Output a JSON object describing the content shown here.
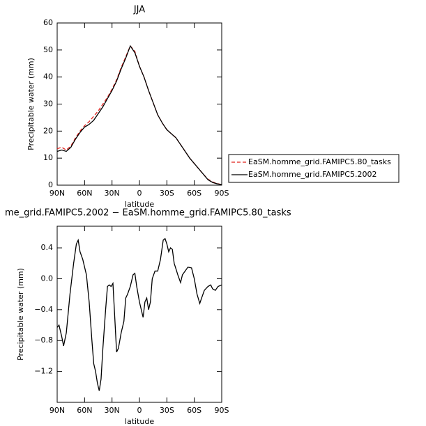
{
  "chart_data": [
    {
      "type": "line",
      "title": "JJA",
      "xlabel": "latitude",
      "ylabel": "Precipitable water (mm)",
      "x": [
        90,
        85,
        80,
        75,
        70,
        65,
        60,
        55,
        50,
        45,
        40,
        35,
        30,
        25,
        20,
        15,
        10,
        5,
        0,
        -5,
        -10,
        -15,
        -20,
        -25,
        -30,
        -35,
        -40,
        -45,
        -50,
        -55,
        -60,
        -65,
        -70,
        -75,
        -80,
        -85,
        -90
      ],
      "series": [
        {
          "name": "EaSM.homme_grid.FAMIPC5.80_tasks",
          "color": "#e0201b",
          "linestyle": "dashed",
          "values": [
            13.5,
            14,
            13,
            14.5,
            17.5,
            20,
            22,
            23.5,
            25.5,
            27.5,
            30,
            32.5,
            35.5,
            39,
            43.5,
            47.5,
            51.5,
            49.5,
            44,
            40,
            35,
            30.5,
            26,
            23,
            20.5,
            19,
            17.5,
            15,
            12.5,
            10,
            8,
            6,
            4,
            2.2,
            1.2,
            0.6,
            0.2
          ]
        },
        {
          "name": "EaSM.homme_grid.FAMIPC5.2002",
          "color": "#000000",
          "linestyle": "solid",
          "values": [
            12.5,
            13,
            12.5,
            14,
            17,
            19.5,
            21.5,
            22.5,
            24,
            26.5,
            29,
            32,
            35,
            38.5,
            43,
            47,
            51.5,
            49,
            44,
            40,
            35,
            30.5,
            26,
            23,
            20.5,
            19,
            17.5,
            15,
            12.5,
            10,
            8,
            6,
            4,
            2,
            1,
            0.5,
            0.2
          ]
        }
      ],
      "xlim": [
        90,
        -90
      ],
      "xticks": [
        {
          "value": 90,
          "label": "90N"
        },
        {
          "value": 60,
          "label": "60N"
        },
        {
          "value": 30,
          "label": "30N"
        },
        0,
        {
          "value": -30,
          "label": "30S"
        },
        {
          "value": -60,
          "label": "60S"
        },
        {
          "value": -90,
          "label": "90S"
        }
      ],
      "ylim": [
        0,
        60
      ],
      "yticks": [
        0,
        10,
        20,
        30,
        40,
        50,
        60
      ],
      "legend": "right"
    },
    {
      "type": "line",
      "title": "me_grid.FAMIPC5.2002 − EaSM.homme_grid.FAMIPC5.80_tasks",
      "xlabel": "latitude",
      "ylabel": "Precipitable water (mm)",
      "x": [
        90,
        88,
        85,
        83,
        80,
        76,
        72,
        69,
        67,
        65,
        62,
        58,
        55,
        52,
        50,
        48,
        46,
        44,
        42,
        40,
        37,
        35,
        33,
        31,
        29,
        27,
        25,
        23,
        20,
        17,
        15,
        13,
        10,
        7,
        5,
        3,
        0,
        -2,
        -4,
        -6,
        -8,
        -10,
        -12,
        -14,
        -17,
        -20,
        -23,
        -26,
        -28,
        -30,
        -32,
        -34,
        -36,
        -38,
        -42,
        -45,
        -47,
        -50,
        -53,
        -57,
        -60,
        -63,
        -66,
        -68,
        -71,
        -75,
        -78,
        -80,
        -83,
        -86,
        -90
      ],
      "series": [
        {
          "name": null,
          "color": "#000000",
          "linestyle": "solid",
          "values": [
            -0.63,
            -0.6,
            -0.75,
            -0.87,
            -0.7,
            -0.2,
            0.2,
            0.45,
            0.5,
            0.35,
            0.25,
            0.05,
            -0.3,
            -0.8,
            -1.1,
            -1.2,
            -1.35,
            -1.45,
            -1.3,
            -0.9,
            -0.4,
            -0.1,
            -0.08,
            -0.1,
            -0.06,
            -0.5,
            -0.95,
            -0.9,
            -0.7,
            -0.55,
            -0.25,
            -0.2,
            -0.1,
            0.05,
            0.07,
            -0.1,
            -0.3,
            -0.4,
            -0.5,
            -0.3,
            -0.25,
            -0.4,
            -0.3,
            0,
            0.1,
            0.1,
            0.25,
            0.5,
            0.52,
            0.45,
            0.35,
            0.4,
            0.38,
            0.2,
            0.05,
            -0.05,
            0.05,
            0.1,
            0.15,
            0.14,
            0,
            -0.2,
            -0.32,
            -0.25,
            -0.15,
            -0.1,
            -0.08,
            -0.13,
            -0.15,
            -0.1,
            -0.08
          ]
        }
      ],
      "xlim": [
        90,
        -90
      ],
      "xticks": [
        {
          "value": 90,
          "label": "90N"
        },
        {
          "value": 60,
          "label": "60N"
        },
        {
          "value": 30,
          "label": "30N"
        },
        0,
        {
          "value": -30,
          "label": "30S"
        },
        {
          "value": -60,
          "label": "60S"
        },
        {
          "value": -90,
          "label": "90S"
        }
      ],
      "ylim": [
        -1.6,
        0.68
      ],
      "yticks": [
        {
          "value": -1.2,
          "label": "−1.2"
        },
        {
          "value": -0.8,
          "label": "−0.8"
        },
        {
          "value": -0.4,
          "label": "−0.4"
        },
        {
          "value": 0,
          "label": "0.0"
        },
        0.4
      ]
    }
  ]
}
